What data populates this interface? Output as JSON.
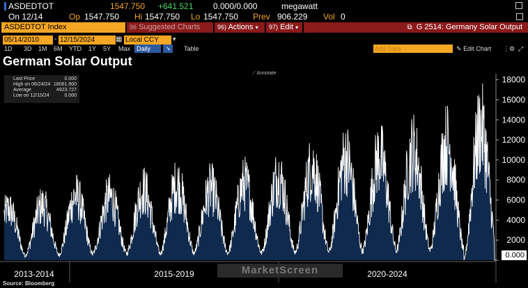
{
  "quote": {
    "ticker": "ASDEDTOT",
    "last": "1547.750",
    "change": "+641.521",
    "bid_ask": "0.000/0.000",
    "unit": "megawatt",
    "date": "On 12/14",
    "open_label": "Op",
    "open": "1547.750",
    "high_label": "Hi",
    "high": "1547.750",
    "low_label": "Lo",
    "low": "1547.750",
    "prev_label": "Prev",
    "prev": "906.229",
    "vol_label": "Vol",
    "vol": "0"
  },
  "toolbar": {
    "security": "ASDEDTOT Index",
    "suggested": "Suggested Charts",
    "suggested_num": "96",
    "actions_num": "96)",
    "actions": "Actions",
    "edit_num": "97)",
    "edit": "Edit",
    "function_label": "G 2514: Germany Solar Output"
  },
  "dates": {
    "start": "05/14/2010",
    "end": "12/15/2024",
    "currency": "Local CCY"
  },
  "periods": [
    "1D",
    "3D",
    "1M",
    "6M",
    "YTD",
    "1Y",
    "5Y",
    "Max"
  ],
  "frequency": "Daily",
  "table_label": "Table",
  "add_data_placeholder": "Add Data",
  "edit_chart_label": "Edit Chart",
  "chart_title": "German Solar Output",
  "annotate_label": "Annotate",
  "legend": {
    "last_price_label": "Last Price",
    "last_price": "0.000",
    "high_label": "High on 06/24/24",
    "high": "18061.900",
    "average_label": "Average",
    "average": "4923.727",
    "low_label": "Low on 12/15/24",
    "low": "0.000"
  },
  "last_value_tag": "0.000",
  "source": "Source: Bloomberg",
  "watermark": "MarketScreen",
  "colors": {
    "orange": "#f5a623",
    "series_fill": "#0f2a4d",
    "series_line": "#ffffff",
    "red_bar": "#8b1a1a",
    "green": "#4cd964"
  },
  "chart_data": {
    "type": "area",
    "title": "German Solar Output",
    "ylabel": "megawatt",
    "ylim": [
      0,
      18600
    ],
    "yticks": [
      0,
      2000,
      4000,
      6000,
      8000,
      10000,
      12000,
      14000,
      16000,
      18000
    ],
    "ytick_labels": [
      "2000",
      "4000",
      "6000",
      "8000",
      "10000",
      "12000",
      "14000",
      "16000",
      "18000"
    ],
    "x_period_labels": [
      "2013-2014",
      "2015-2019",
      "2020-2024"
    ],
    "x_range": [
      "05/14/2010",
      "12/15/2024"
    ],
    "series": [
      {
        "name": "German Solar Output",
        "seasonal_peaks": [
          {
            "year": 2011,
            "peak": 7500
          },
          {
            "year": 2012,
            "peak": 8800
          },
          {
            "year": 2013,
            "peak": 8700
          },
          {
            "year": 2014,
            "peak": 9600
          },
          {
            "year": 2015,
            "peak": 10400
          },
          {
            "year": 2016,
            "peak": 9800
          },
          {
            "year": 2017,
            "peak": 10500
          },
          {
            "year": 2018,
            "peak": 11500
          },
          {
            "year": 2019,
            "peak": 12800
          },
          {
            "year": 2020,
            "peak": 14000
          },
          {
            "year": 2021,
            "peak": 14200
          },
          {
            "year": 2022,
            "peak": 15000
          },
          {
            "year": 2023,
            "peak": 16000
          },
          {
            "year": 2024,
            "peak": 18061.9
          }
        ],
        "winter_troughs": [
          {
            "year": 2010,
            "trough": 600
          },
          {
            "year": 2011,
            "trough": 700
          },
          {
            "year": 2012,
            "trough": 800
          },
          {
            "year": 2013,
            "trough": 900
          },
          {
            "year": 2014,
            "trough": 900
          },
          {
            "year": 2015,
            "trough": 900
          },
          {
            "year": 2016,
            "trough": 1000
          },
          {
            "year": 2017,
            "trough": 1000
          },
          {
            "year": 2018,
            "trough": 1000
          },
          {
            "year": 2019,
            "trough": 1100
          },
          {
            "year": 2020,
            "trough": 1200
          },
          {
            "year": 2021,
            "trough": 1300
          },
          {
            "year": 2022,
            "trough": 1300
          },
          {
            "year": 2023,
            "trough": 1400
          },
          {
            "year": 2024,
            "trough": 0
          }
        ],
        "average": 4923.727,
        "high": 18061.9,
        "low": 0,
        "last": 0
      }
    ]
  }
}
